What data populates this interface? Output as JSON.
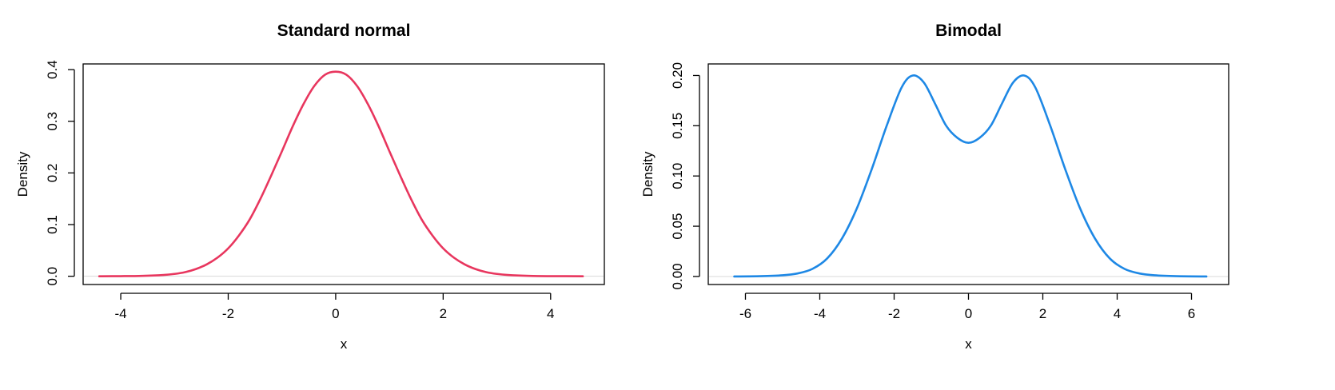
{
  "chart_data": [
    {
      "type": "line",
      "title": "Standard normal",
      "xlabel": "x",
      "ylabel": "Density",
      "xticks": [
        "-4",
        "-2",
        "0",
        "2",
        "4"
      ],
      "yticks": [
        "0.0",
        "0.1",
        "0.2",
        "0.3",
        "0.4"
      ],
      "xlim": [
        -4.7,
        5.0
      ],
      "ylim": [
        -0.016,
        0.411
      ],
      "grid": false,
      "color": "#e8365e",
      "series": [
        {
          "x": [
            -4.4,
            -4.0,
            -3.6,
            -3.2,
            -3.0,
            -2.8,
            -2.6,
            -2.4,
            -2.2,
            -2.0,
            -1.8,
            -1.6,
            -1.4,
            -1.2,
            -1.0,
            -0.8,
            -0.6,
            -0.4,
            -0.2,
            0.0,
            0.2,
            0.4,
            0.6,
            0.8,
            1.0,
            1.2,
            1.4,
            1.6,
            1.8,
            2.0,
            2.2,
            2.4,
            2.6,
            2.8,
            3.0,
            3.2,
            3.6,
            4.0,
            4.6
          ],
          "y": [
            0.0,
            0.0002,
            0.0008,
            0.0025,
            0.0045,
            0.008,
            0.014,
            0.023,
            0.036,
            0.054,
            0.079,
            0.11,
            0.15,
            0.195,
            0.242,
            0.29,
            0.333,
            0.368,
            0.39,
            0.396,
            0.39,
            0.368,
            0.333,
            0.29,
            0.242,
            0.195,
            0.15,
            0.11,
            0.079,
            0.054,
            0.036,
            0.023,
            0.014,
            0.008,
            0.0045,
            0.0025,
            0.0008,
            0.0002,
            0.0
          ]
        }
      ]
    },
    {
      "type": "line",
      "title": "Bimodal",
      "xlabel": "x",
      "ylabel": "Density",
      "xticks": [
        "-6",
        "-4",
        "-2",
        "0",
        "2",
        "4",
        "6"
      ],
      "yticks": [
        "0.00",
        "0.05",
        "0.10",
        "0.15",
        "0.20"
      ],
      "xlim": [
        -7.0,
        7.0
      ],
      "ylim": [
        -0.008,
        0.2115
      ],
      "grid": false,
      "color": "#1e88e5",
      "series": [
        {
          "x": [
            -6.3,
            -5.6,
            -5.0,
            -4.6,
            -4.2,
            -3.8,
            -3.4,
            -3.0,
            -2.6,
            -2.2,
            -1.8,
            -1.5,
            -1.2,
            -0.9,
            -0.6,
            -0.3,
            0.0,
            0.3,
            0.6,
            0.9,
            1.2,
            1.5,
            1.8,
            2.2,
            2.6,
            3.0,
            3.4,
            3.8,
            4.2,
            4.6,
            5.0,
            5.6,
            6.4
          ],
          "y": [
            0.0,
            0.0003,
            0.0012,
            0.003,
            0.0075,
            0.018,
            0.038,
            0.068,
            0.107,
            0.15,
            0.188,
            0.2,
            0.193,
            0.172,
            0.15,
            0.138,
            0.133,
            0.138,
            0.15,
            0.172,
            0.193,
            0.2,
            0.188,
            0.15,
            0.107,
            0.068,
            0.038,
            0.018,
            0.0075,
            0.003,
            0.0012,
            0.0003,
            0.0
          ]
        }
      ]
    }
  ]
}
